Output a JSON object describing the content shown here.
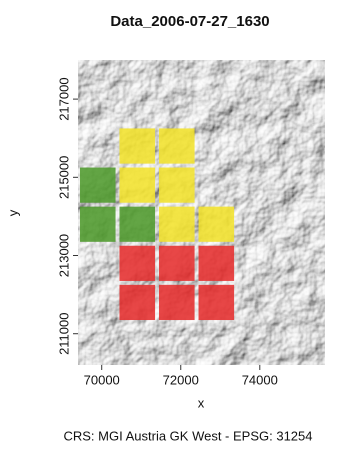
{
  "chart_data": {
    "type": "raster-cells",
    "title": "Data_2006-07-27_1630",
    "xlabel": "x",
    "ylabel": "y",
    "caption": "CRS: MGI Austria GK West - EPSG: 31254",
    "xlim": [
      69400,
      75650
    ],
    "ylim": [
      210200,
      218000
    ],
    "xticks": [
      70000,
      72000,
      74000
    ],
    "yticks": [
      211000,
      213000,
      215000,
      217000
    ],
    "cell_size": 900,
    "series": [
      {
        "color": "#4f9a2c",
        "x": [
          69900,
          69900,
          70900
        ],
        "y": [
          214800,
          213800,
          213800
        ]
      },
      {
        "color": "#f3e22c",
        "x": [
          70900,
          71900,
          70900,
          71900,
          71900,
          72900
        ],
        "y": [
          215800,
          215800,
          214800,
          214800,
          213800,
          213800
        ]
      },
      {
        "color": "#e52d2d",
        "x": [
          70900,
          71900,
          72900,
          70900,
          71900,
          72900
        ],
        "y": [
          212800,
          212800,
          212800,
          211800,
          211800,
          211800
        ]
      }
    ]
  }
}
